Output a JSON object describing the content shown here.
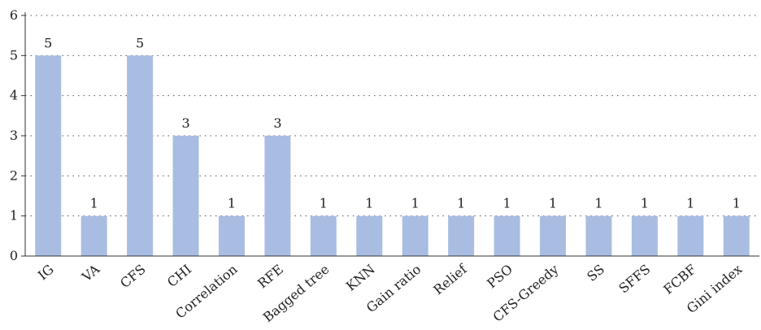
{
  "chart_data": {
    "type": "bar",
    "title": "",
    "xlabel": "",
    "ylabel": "",
    "categories": [
      "IG",
      "VA",
      "CFS",
      "CHI",
      "Correlation",
      "RFE",
      "Bagged tree",
      "KNN",
      "Gain ratio",
      "Relief",
      "PSO",
      "CFS-Greedy",
      "SS",
      "SFFS",
      "FCBF",
      "Gini index"
    ],
    "values": [
      5,
      1,
      5,
      3,
      1,
      3,
      1,
      1,
      1,
      1,
      1,
      1,
      1,
      1,
      1,
      1
    ],
    "data_labels": [
      "5",
      "1",
      "5",
      "3",
      "1",
      "3",
      "1",
      "1",
      "1",
      "1",
      "1",
      "1",
      "1",
      "1",
      "1",
      "1"
    ],
    "ylim": [
      0,
      6
    ],
    "yticks": [
      "0",
      "1",
      "2",
      "3",
      "4",
      "5",
      "6"
    ],
    "grid": true,
    "bar_color": "#a9bde3"
  }
}
